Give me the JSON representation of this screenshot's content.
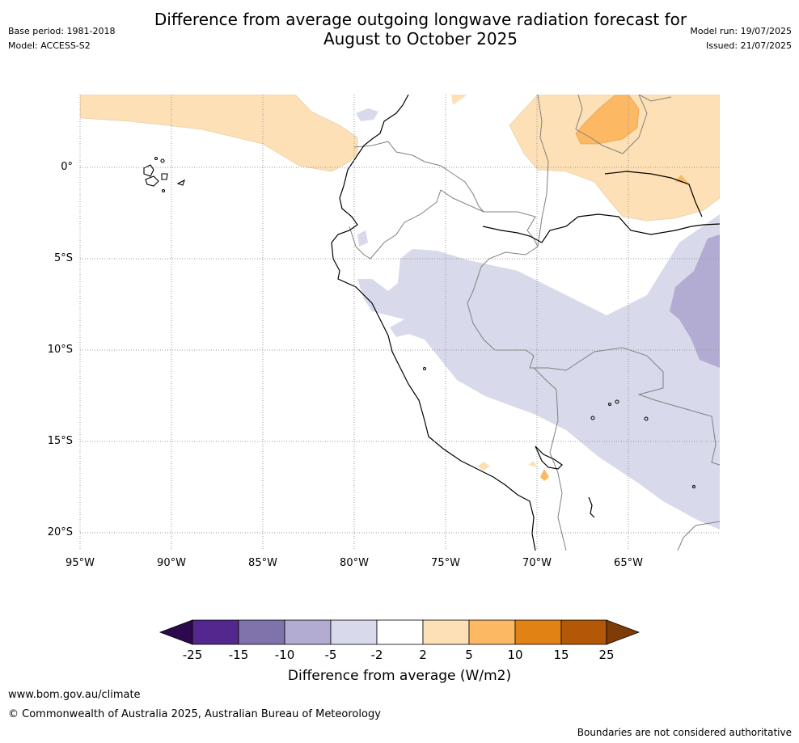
{
  "header": {
    "title_line1": "Difference from average outgoing longwave radiation forecast for",
    "title_line2": "August to October 2025",
    "base_period": "Base period: 1981-2018",
    "model": "Model: ACCESS-S2",
    "model_run": "Model run: 19/07/2025",
    "issued": "Issued: 21/07/2025"
  },
  "map": {
    "region": "Peru and surrounding region, South America",
    "lat_labels": [
      "0°",
      "5°S",
      "10°S",
      "15°S",
      "20°S"
    ],
    "lon_labels": [
      "95°W",
      "90°W",
      "85°W",
      "80°W",
      "75°W",
      "70°W",
      "65°W"
    ],
    "colors": {
      "neg_25": "#2d0a4d",
      "neg_25_15": "#54278f",
      "neg_15_10": "#8073ac",
      "neg_10_5": "#b2abd2",
      "neg_5_2": "#d8daeb",
      "neutral": "#ffffff",
      "pos_2_5": "#fee0b6",
      "pos_5_10": "#fdb863",
      "pos_10_15": "#e08214",
      "pos_15_25": "#b35806",
      "pos_25": "#7f3b08",
      "coast": "#000000",
      "border": "#808080",
      "grid": "#999999"
    }
  },
  "colorbar": {
    "title": "Difference from average (W/m2)",
    "ticks": [
      "-25",
      "-15",
      "-10",
      "-5",
      "-2",
      "2",
      "5",
      "10",
      "15",
      "25"
    ],
    "swatches": [
      "#54278f",
      "#8073ac",
      "#b2abd2",
      "#d8daeb",
      "#ffffff",
      "#fee0b6",
      "#fdb863",
      "#e08214",
      "#b35806"
    ]
  },
  "footer": {
    "website": "www.bom.gov.au/climate",
    "copyright": "© Commonwealth of Australia 2025, Australian Bureau of Meteorology",
    "disclaimer": "Boundaries are not considered authoritative"
  }
}
